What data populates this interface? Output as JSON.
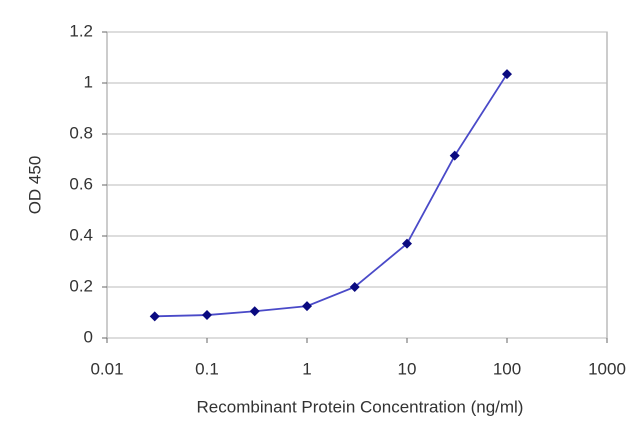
{
  "chart_data": {
    "type": "line",
    "x_label": "Recombinant Protein Concentration (ng/ml)",
    "y_label": "OD 450",
    "x_scale": "log",
    "grid": true,
    "marker": "diamond",
    "series": [
      {
        "color": "#0a0a80",
        "line_color": "#4a4ac8",
        "x": [
          0.03,
          0.1,
          0.3,
          1,
          3,
          10,
          30,
          100
        ],
        "values": [
          0.085,
          0.09,
          0.105,
          0.125,
          0.2,
          0.37,
          0.715,
          1.035
        ]
      }
    ],
    "xlim": [
      0.01,
      1000
    ],
    "xticks": [
      0.01,
      0.1,
      1,
      10,
      100,
      1000
    ],
    "ylim": [
      0,
      1.2
    ],
    "yticks": [
      0,
      0.2,
      0.4,
      0.6,
      0.8,
      1,
      1.2
    ]
  }
}
